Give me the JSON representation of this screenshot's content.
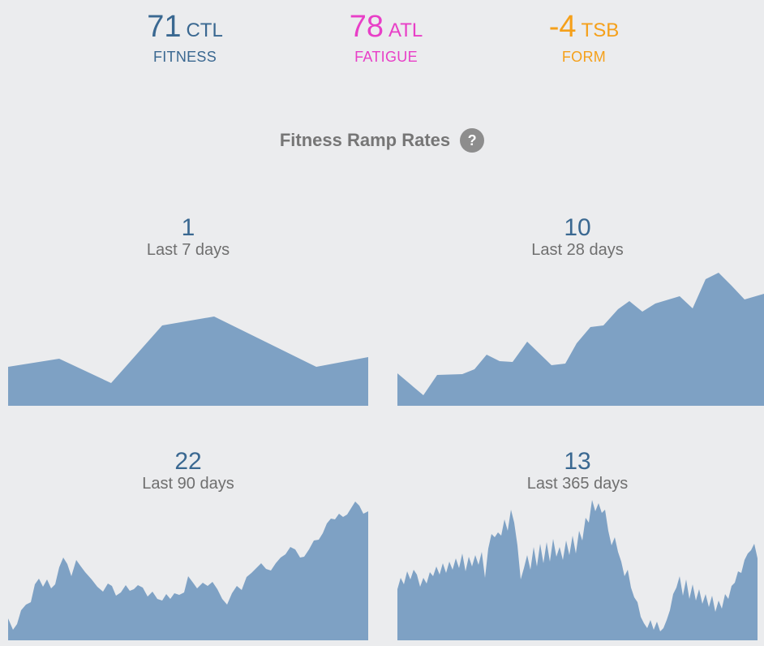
{
  "summary": {
    "ctl": {
      "value": "71",
      "abbr": "CTL",
      "label": "FITNESS",
      "color": "#3a6891"
    },
    "atl": {
      "value": "78",
      "abbr": "ATL",
      "label": "FATIGUE",
      "color": "#e83fc7"
    },
    "tsb": {
      "value": "-4",
      "abbr": "TSB",
      "label": "FORM",
      "color": "#f5a01a"
    }
  },
  "ramp": {
    "title": "Fitness Ramp Rates",
    "help_icon": "question-mark-icon"
  },
  "panels": [
    {
      "rate": "1",
      "period": "Last 7 days"
    },
    {
      "rate": "10",
      "period": "Last 28 days"
    },
    {
      "rate": "22",
      "period": "Last 90 days"
    },
    {
      "rate": "13",
      "period": "Last 365 days"
    }
  ],
  "colors": {
    "area_fill": "#7ea1c4",
    "background": "#ebecee",
    "value_text": "#3a6891",
    "label_text": "#6f6f6f"
  }
}
